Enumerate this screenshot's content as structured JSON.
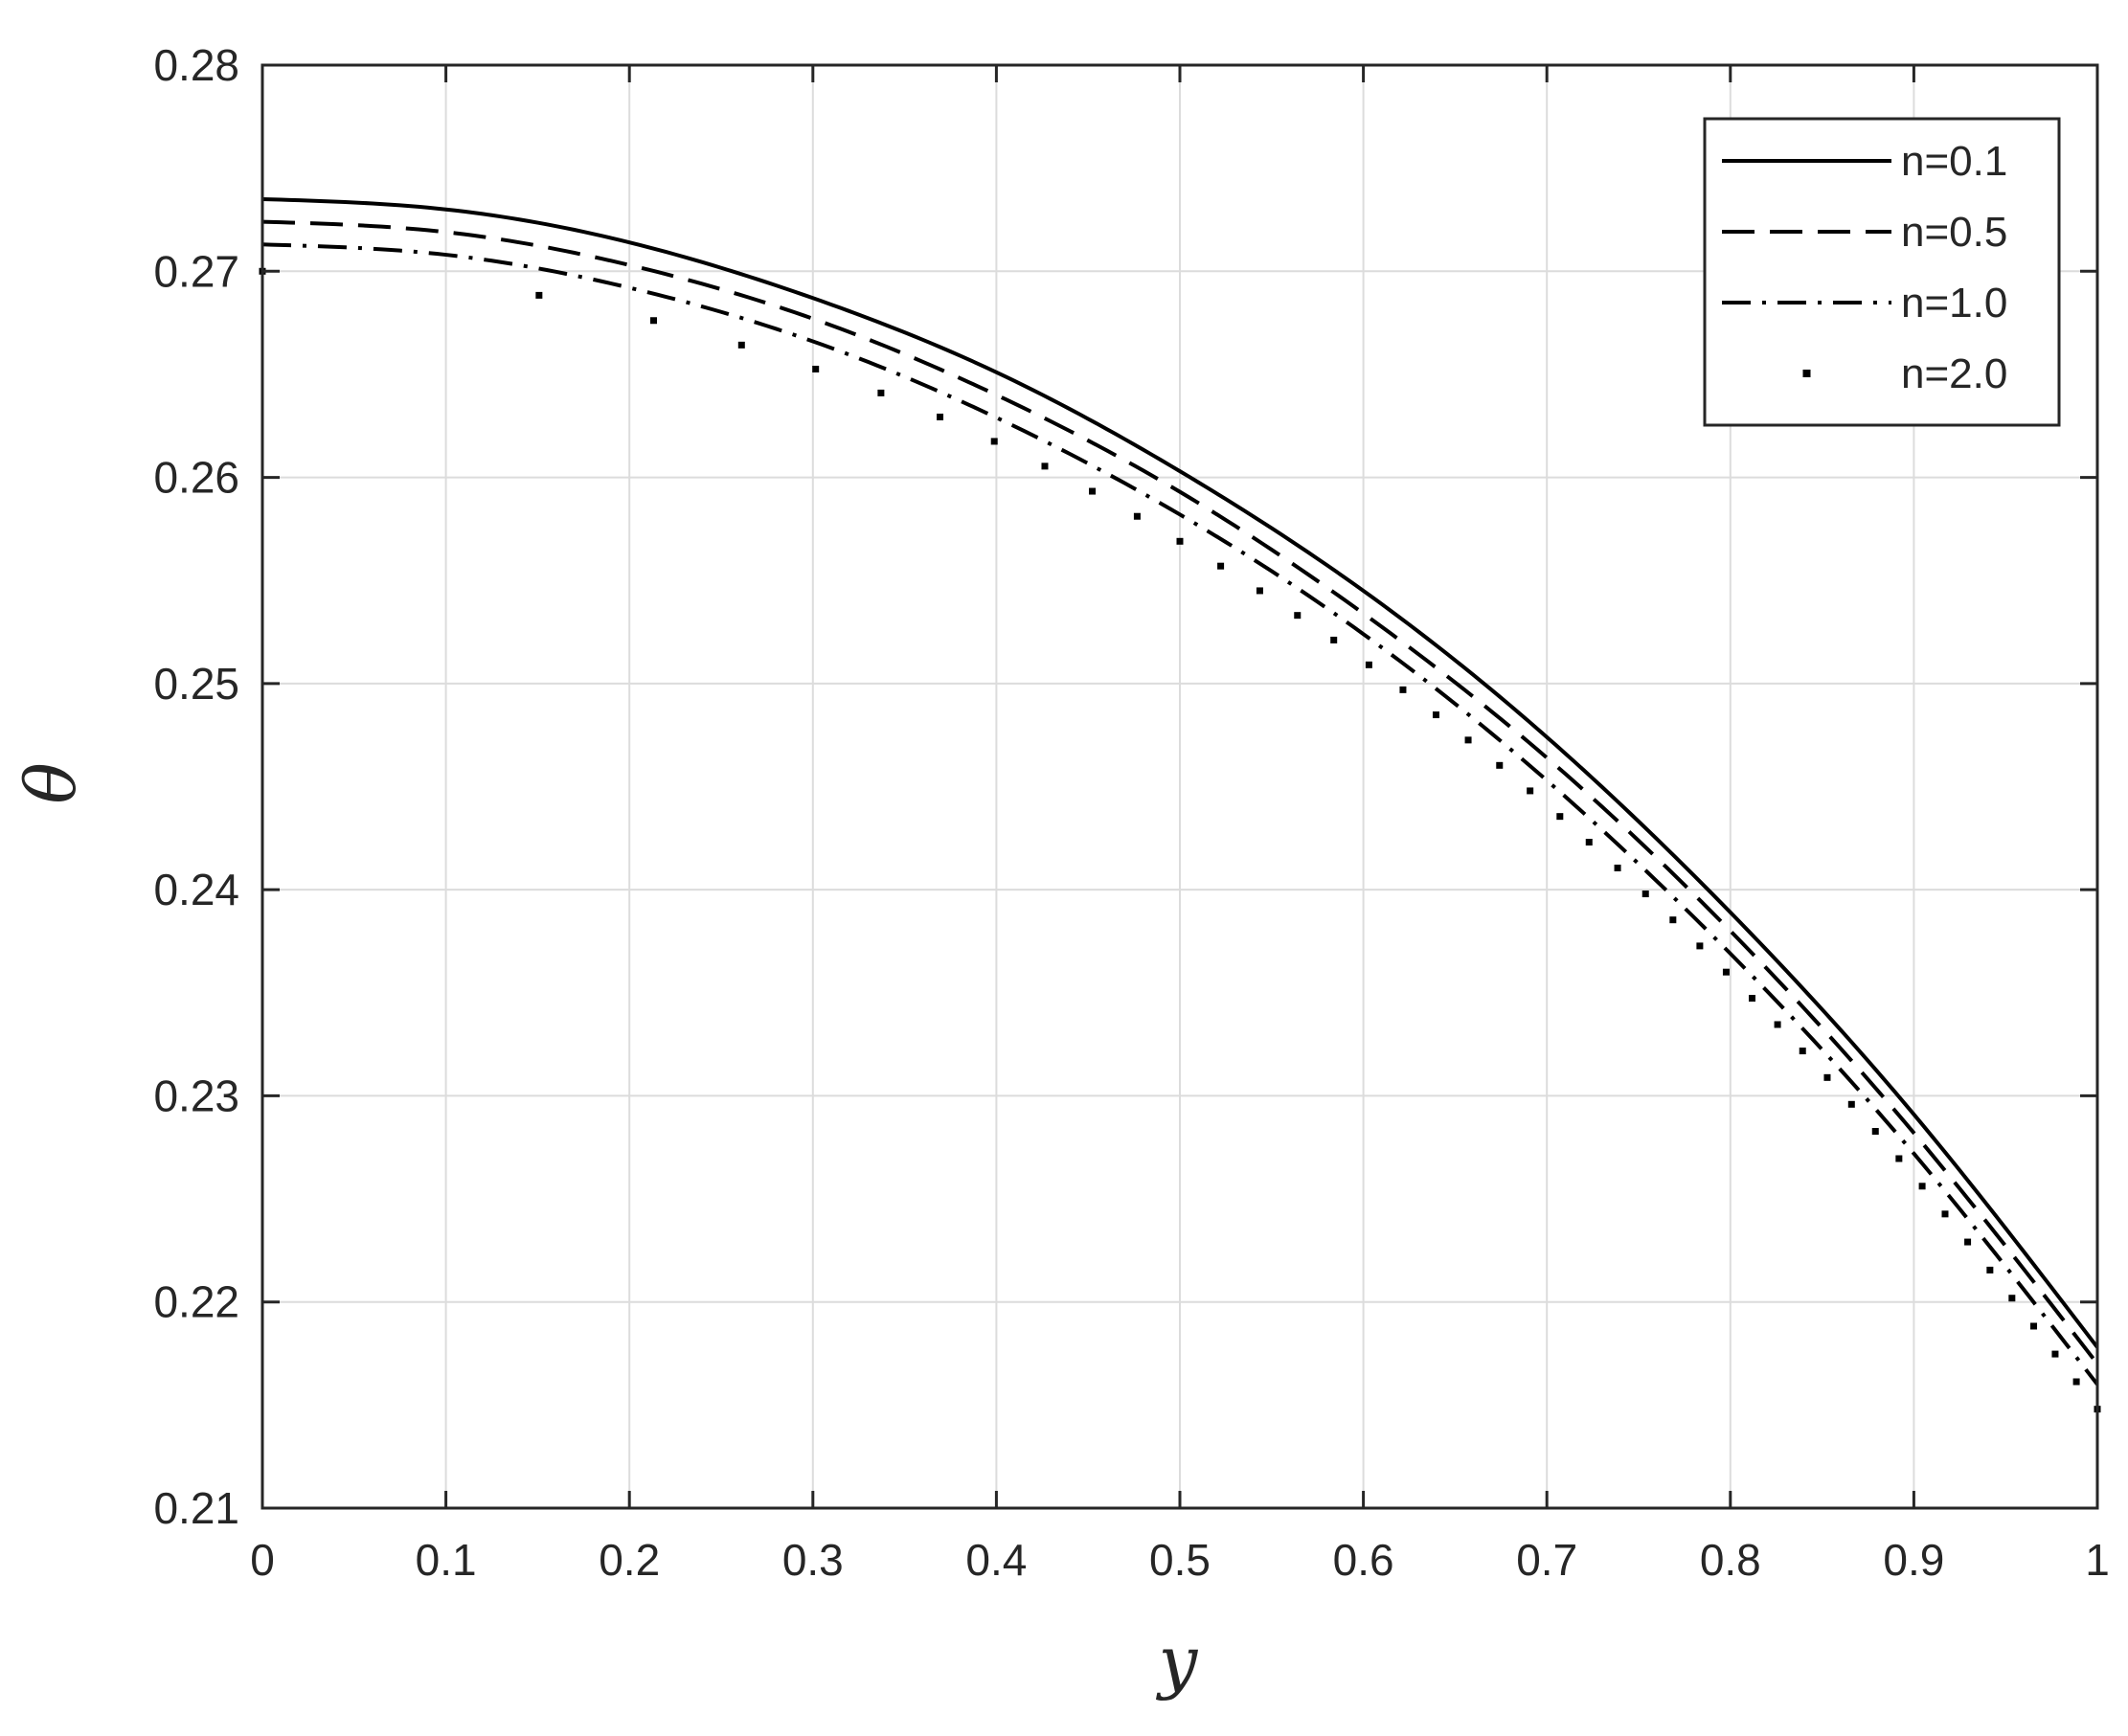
{
  "chart_data": {
    "type": "line",
    "xlabel": "y",
    "ylabel": "θ",
    "xlim": [
      0,
      1
    ],
    "ylim": [
      0.21,
      0.28
    ],
    "xticks": [
      "0",
      "0.1",
      "0.2",
      "0.3",
      "0.4",
      "0.5",
      "0.6",
      "0.7",
      "0.8",
      "0.9",
      "1"
    ],
    "yticks": [
      "0.21",
      "0.22",
      "0.23",
      "0.24",
      "0.25",
      "0.26",
      "0.27",
      "0.28"
    ],
    "grid": true,
    "legend_position": "top-right",
    "x": [
      0,
      0.1,
      0.2,
      0.3,
      0.4,
      0.5,
      0.6,
      0.7,
      0.8,
      0.9,
      1.0
    ],
    "series": [
      {
        "name": "n=0.1",
        "style": "solid",
        "values": [
          0.2735,
          0.273,
          0.2714,
          0.2687,
          0.2651,
          0.2603,
          0.2545,
          0.2474,
          0.2389,
          0.2291,
          0.2178
        ]
      },
      {
        "name": "n=0.5",
        "style": "dashed",
        "values": [
          0.2724,
          0.2719,
          0.2703,
          0.2677,
          0.264,
          0.2593,
          0.2534,
          0.2464,
          0.238,
          0.2282,
          0.217
        ]
      },
      {
        "name": "n=1.0",
        "style": "dashdot",
        "values": [
          0.2713,
          0.2708,
          0.2692,
          0.2666,
          0.2629,
          0.2582,
          0.2524,
          0.2453,
          0.2369,
          0.2272,
          0.216
        ]
      },
      {
        "name": "n=2.0",
        "style": "dotted",
        "values": [
          0.27,
          0.2695,
          0.2679,
          0.2653,
          0.2617,
          0.2569,
          0.2511,
          0.2441,
          0.2358,
          0.2261,
          0.2148
        ]
      }
    ]
  }
}
